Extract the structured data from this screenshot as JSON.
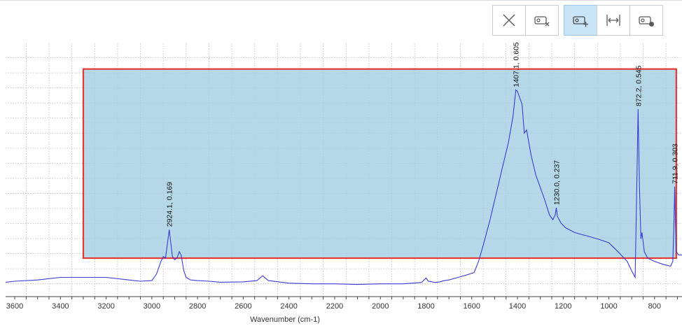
{
  "toolbar": {
    "buttons": [
      {
        "icon": "close-icon",
        "active": false
      },
      {
        "icon": "remove-region-icon",
        "active": false
      },
      {
        "icon": "add-region-icon",
        "active": true
      },
      {
        "icon": "fit-width-icon",
        "active": false
      },
      {
        "icon": "region-marker-icon",
        "active": false
      }
    ]
  },
  "selection": {
    "x_range": [
      3300,
      705
    ],
    "y_range": [
      0.08,
      0.67
    ],
    "fill": "#a8d1e4",
    "border": "#e53935"
  },
  "chart_data": {
    "type": "line",
    "xlabel": "Wavenumber (cm-1)",
    "ylabel": "",
    "xlim": [
      3640,
      680
    ],
    "ylim": [
      -0.04,
      0.75
    ],
    "x_reversed": true,
    "x_ticks": [
      3600,
      3400,
      3200,
      3000,
      2800,
      2600,
      2400,
      2200,
      2000,
      1800,
      1600,
      1400,
      1200,
      1000,
      800
    ],
    "grid": true,
    "series_color": "#3b3bd6",
    "series": [
      {
        "x": [
          3640,
          3600,
          3500,
          3400,
          3300,
          3200,
          3100,
          3050,
          3000,
          2980,
          2960,
          2950,
          2940,
          2924,
          2910,
          2900,
          2890,
          2880,
          2872,
          2860,
          2850,
          2830,
          2800,
          2750,
          2700,
          2600,
          2540,
          2515,
          2490,
          2400,
          2300,
          2200,
          2100,
          2000,
          1900,
          1820,
          1800,
          1790,
          1760,
          1740,
          1720,
          1700,
          1660,
          1620,
          1590,
          1570,
          1550,
          1520,
          1500,
          1480,
          1460,
          1440,
          1420,
          1407,
          1400,
          1390,
          1380,
          1370,
          1360,
          1350,
          1340,
          1320,
          1300,
          1280,
          1260,
          1245,
          1235,
          1230,
          1225,
          1210,
          1190,
          1150,
          1100,
          1050,
          1000,
          960,
          920,
          900,
          885,
          878,
          872,
          866,
          860,
          855,
          850,
          845,
          830,
          800,
          760,
          730,
          720,
          715,
          712,
          709,
          705,
          695,
          680
        ],
        "y": [
          0.005,
          0.008,
          0.012,
          0.02,
          0.02,
          0.02,
          0.012,
          0.008,
          0.01,
          0.03,
          0.07,
          0.085,
          0.08,
          0.169,
          0.085,
          0.075,
          0.08,
          0.1,
          0.09,
          0.04,
          0.02,
          0.012,
          0.01,
          0.008,
          0.005,
          0.006,
          0.01,
          0.025,
          0.01,
          0.002,
          0.0,
          0.0,
          -0.002,
          0.0,
          0.0,
          0.004,
          0.018,
          0.008,
          0.004,
          0.006,
          0.01,
          0.012,
          0.02,
          0.028,
          0.035,
          0.07,
          0.12,
          0.2,
          0.26,
          0.32,
          0.38,
          0.44,
          0.52,
          0.605,
          0.6,
          0.58,
          0.56,
          0.47,
          0.48,
          0.44,
          0.4,
          0.34,
          0.3,
          0.26,
          0.215,
          0.2,
          0.215,
          0.237,
          0.21,
          0.19,
          0.175,
          0.16,
          0.15,
          0.14,
          0.128,
          0.1,
          0.07,
          0.04,
          0.02,
          0.3,
          0.545,
          0.3,
          0.14,
          0.16,
          0.13,
          0.1,
          0.08,
          0.07,
          0.06,
          0.055,
          0.07,
          0.2,
          0.303,
          0.2,
          0.1,
          0.09,
          0.09
        ]
      }
    ],
    "annotations": [
      {
        "x": 2924.1,
        "y": 0.169,
        "label": "2924.1, 0.169"
      },
      {
        "x": 1407.1,
        "y": 0.605,
        "label": "1407.1, 0.605"
      },
      {
        "x": 1230.0,
        "y": 0.237,
        "label": "1230.0, 0.237"
      },
      {
        "x": 872.2,
        "y": 0.545,
        "label": "872.2, 0.545"
      },
      {
        "x": 711.9,
        "y": 0.303,
        "label": "711.9, 0.303"
      }
    ]
  }
}
